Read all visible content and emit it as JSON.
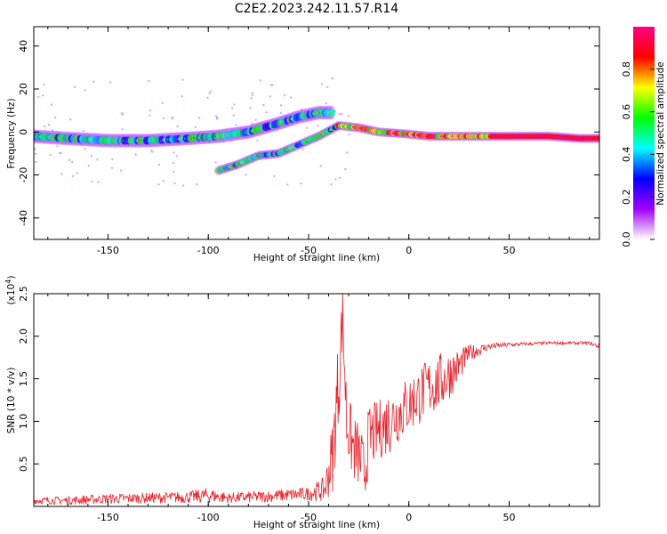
{
  "title": "C2E2.2023.242.11.57.R14",
  "colors": {
    "snr_line": "#e8202a",
    "background": "#ffffff",
    "axis": "#000000"
  },
  "chart_data": [
    {
      "type": "heatmap",
      "name_key": "spectrogram",
      "xlabel": "Height of straight line (km)",
      "ylabel": "Frequency (Hz)",
      "xlim": [
        -187,
        95
      ],
      "ylim": [
        -50,
        49
      ],
      "x_ticks": [
        -150,
        -100,
        -50,
        0,
        50
      ],
      "y_ticks": [
        -40,
        -20,
        0,
        20,
        40
      ],
      "x_tick_labels": [
        "-150",
        "-100",
        "-50",
        "0",
        "50"
      ],
      "y_tick_labels": [
        "-40",
        "-20",
        "0",
        "20",
        "40"
      ],
      "colorbar": {
        "label": "Normalized spectral amplitude",
        "range": [
          0,
          1
        ],
        "ticks": [
          "0.0",
          "0.2",
          "0.4",
          "0.6",
          "0.8"
        ],
        "tick_values": [
          0.0,
          0.2,
          0.4,
          0.6,
          0.8
        ],
        "colormap": [
          "#ffffff",
          "#a000ff",
          "#0000ff",
          "#00ffff",
          "#00ff00",
          "#ffff00",
          "#ff0000",
          "#ff0080"
        ]
      },
      "traces": [
        {
          "id": "main-band",
          "points": [
            [
              -187,
              -2
            ],
            [
              -170,
              -3
            ],
            [
              -150,
              -4
            ],
            [
              -130,
              -4
            ],
            [
              -110,
              -3
            ],
            [
              -95,
              -2
            ],
            [
              -80,
              0
            ],
            [
              -65,
              4
            ],
            [
              -55,
              7
            ],
            [
              -45,
              9
            ],
            [
              -38,
              9
            ]
          ],
          "halfwidth": 3
        },
        {
          "id": "lower-branch",
          "points": [
            [
              -95,
              -18
            ],
            [
              -85,
              -15
            ],
            [
              -75,
              -11
            ],
            [
              -65,
              -10
            ],
            [
              -55,
              -6
            ],
            [
              -45,
              -2
            ],
            [
              -35,
              3
            ]
          ],
          "halfwidth": 2
        },
        {
          "id": "merged-band",
          "points": [
            [
              -35,
              3
            ],
            [
              -25,
              2
            ],
            [
              -15,
              0
            ],
            [
              0,
              -1
            ],
            [
              10,
              -2
            ],
            [
              30,
              -2
            ],
            [
              50,
              -2
            ],
            [
              70,
              -2
            ],
            [
              85,
              -3
            ],
            [
              95,
              -3
            ]
          ],
          "halfwidth": 2
        }
      ]
    },
    {
      "type": "line",
      "name_key": "snr",
      "xlabel": "Height of straight line (km)",
      "ylabel": "SNR (10 * v/v)",
      "multiplier": "(x10",
      "multiplier_exp": "4",
      "multiplier_close": ")",
      "xlim": [
        -187,
        95
      ],
      "ylim": [
        0,
        2.5
      ],
      "x_ticks": [
        -150,
        -100,
        -50,
        0,
        50
      ],
      "y_ticks": [
        0.5,
        1.0,
        1.5,
        2.0,
        2.5
      ],
      "x_tick_labels": [
        "-150",
        "-100",
        "-50",
        "0",
        "50"
      ],
      "y_tick_labels": [
        "0.5",
        "1.0",
        "1.5",
        "2.0",
        "2.5"
      ],
      "series": [
        {
          "color": "#e8202a",
          "x": [
            -187,
            -170,
            -150,
            -130,
            -110,
            -100,
            -90,
            -70,
            -50,
            -42,
            -38,
            -35,
            -33,
            -31,
            -28,
            -25,
            -22,
            -20,
            -15,
            -10,
            -5,
            0,
            5,
            10,
            15,
            20,
            25,
            30,
            40,
            50,
            60,
            70,
            80,
            90,
            95
          ],
          "y": [
            0.07,
            0.07,
            0.09,
            0.1,
            0.11,
            0.13,
            0.1,
            0.12,
            0.15,
            0.2,
            0.6,
            1.5,
            2.25,
            1.0,
            0.7,
            0.6,
            0.4,
            0.8,
            0.9,
            1.0,
            1.1,
            1.2,
            1.3,
            1.4,
            1.45,
            1.55,
            1.65,
            1.8,
            1.88,
            1.9,
            1.91,
            1.92,
            1.92,
            1.92,
            1.88
          ],
          "noise": [
            0.04,
            0.05,
            0.06,
            0.06,
            0.07,
            0.09,
            0.06,
            0.07,
            0.08,
            0.15,
            0.45,
            0.6,
            0.35,
            0.45,
            0.4,
            0.4,
            0.35,
            0.4,
            0.35,
            0.4,
            0.35,
            0.35,
            0.35,
            0.35,
            0.35,
            0.3,
            0.2,
            0.1,
            0.04,
            0.03,
            0.02,
            0.02,
            0.02,
            0.02,
            0.03
          ]
        }
      ]
    }
  ]
}
